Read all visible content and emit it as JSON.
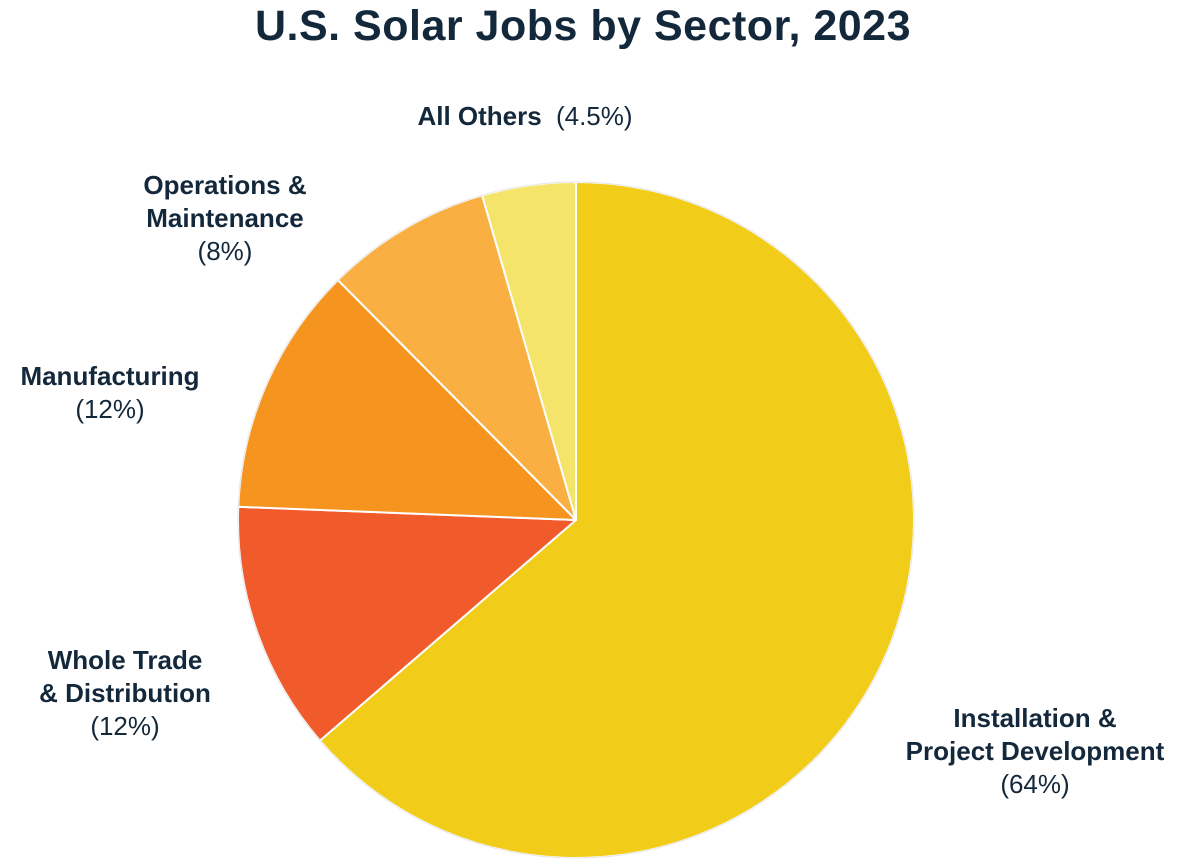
{
  "chart_data": {
    "type": "pie",
    "title": "U.S. Solar Jobs by Sector, 2023",
    "slices": [
      {
        "name": "Installation & Project Development",
        "name_lines": [
          "Installation &",
          "Project Development"
        ],
        "value": 64,
        "label": "(64%)",
        "color": "#F1CC19"
      },
      {
        "name": "Whole Trade & Distribution",
        "name_lines": [
          "Whole Trade",
          "& Distribution"
        ],
        "value": 12,
        "label": "(12%)",
        "color": "#F15B2C"
      },
      {
        "name": "Manufacturing",
        "name_lines": [
          "Manufacturing"
        ],
        "value": 12,
        "label": "(12%)",
        "color": "#F5951F"
      },
      {
        "name": "Operations & Maintenance",
        "name_lines": [
          "Operations &",
          "Maintenance"
        ],
        "value": 8,
        "label": "(8%)",
        "color": "#FAAF42"
      },
      {
        "name": "All Others",
        "name_lines": [
          "All Others"
        ],
        "value": 4.5,
        "label": "(4.5%)",
        "color": "#F4E46A"
      }
    ],
    "start_angle_deg": 0,
    "direction": "clockwise",
    "legend": "none"
  }
}
